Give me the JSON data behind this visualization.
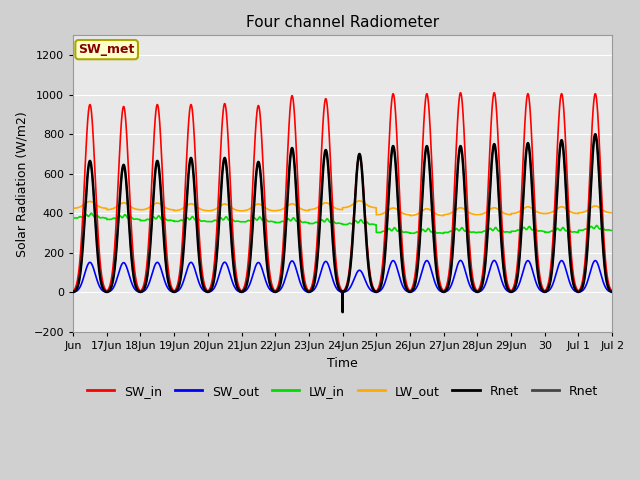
{
  "title": "Four channel Radiometer",
  "xlabel": "Time",
  "ylabel": "Solar Radiation (W/m2)",
  "ylim": [
    -200,
    1300
  ],
  "yticks": [
    -200,
    0,
    200,
    400,
    600,
    800,
    1000,
    1200
  ],
  "fig_bg": "#d0d0d0",
  "plot_bg": "#e8e8e8",
  "grid_color": "#ffffff",
  "annotation_text": "SW_met",
  "annotation_bg": "#ffffcc",
  "annotation_edge": "#aaa800",
  "annotation_text_color": "#880000",
  "sw_in_color": "#ff0000",
  "sw_out_color": "#0000ff",
  "lw_in_color": "#00dd00",
  "lw_out_color": "#ffaa00",
  "rnet_color": "#000000",
  "rnet2_color": "#444444",
  "line_width": 1.2,
  "x_tick_labels": [
    "Jun",
    "17Jun",
    "18Jun",
    "19Jun",
    "20Jun",
    "21Jun",
    "22Jun",
    "23Jun",
    "24Jun",
    "25Jun",
    "26Jun",
    "27Jun",
    "28Jun",
    "29Jun",
    "30",
    "Jul 1",
    "Jul 2"
  ],
  "sw_in_peaks": [
    950,
    940,
    950,
    950,
    955,
    945,
    995,
    980,
    700,
    1005,
    1005,
    1010,
    1010,
    1005,
    1005,
    1005
  ],
  "lw_in_bases": [
    375,
    368,
    362,
    358,
    357,
    356,
    352,
    347,
    342,
    302,
    298,
    302,
    303,
    308,
    303,
    313
  ],
  "lw_out_bases": [
    425,
    418,
    417,
    413,
    412,
    412,
    413,
    418,
    428,
    392,
    388,
    393,
    393,
    398,
    398,
    402
  ],
  "rnet_peaks": [
    665,
    645,
    665,
    680,
    680,
    660,
    730,
    720,
    700,
    740,
    740,
    740,
    750,
    755,
    770,
    800
  ],
  "rnet_nights": [
    -80,
    -80,
    -85,
    -85,
    -85,
    -80,
    -90,
    -95,
    -100,
    -100,
    -100,
    -100,
    -105,
    -105,
    -105,
    -105
  ]
}
